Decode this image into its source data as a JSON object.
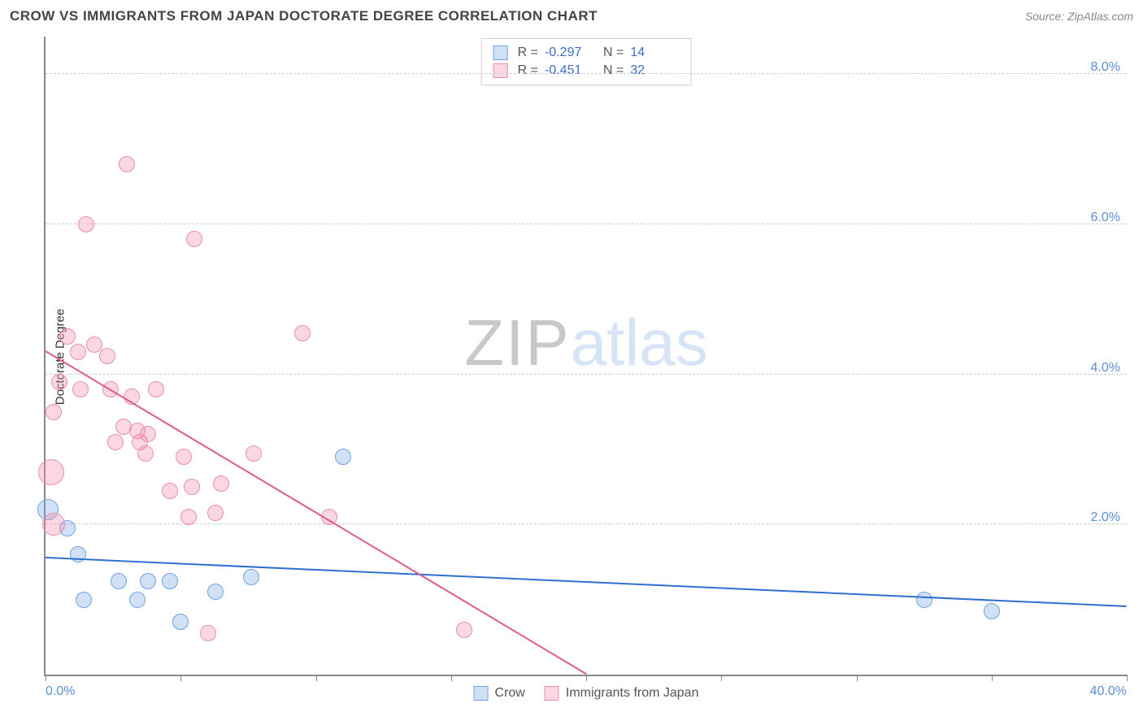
{
  "header": {
    "title": "CROW VS IMMIGRANTS FROM JAPAN DOCTORATE DEGREE CORRELATION CHART",
    "source_prefix": "Source: ",
    "source": "ZipAtlas.com"
  },
  "watermark": {
    "zip": "ZIP",
    "atlas": "atlas"
  },
  "chart": {
    "type": "scatter",
    "y_axis_label": "Doctorate Degree",
    "background_color": "#ffffff",
    "grid_color": "#cccccc",
    "axis_color": "#888888",
    "tick_label_color": "#5b8fd6",
    "xlim": [
      0,
      40
    ],
    "ylim": [
      0,
      8.5
    ],
    "x_ticks": [
      0,
      5,
      10,
      15,
      20,
      25,
      30,
      35,
      40
    ],
    "x_tick_labels": {
      "0": "0.0%",
      "40": "40.0%"
    },
    "y_gridlines": [
      2,
      4,
      6,
      8
    ],
    "y_tick_labels": {
      "2": "2.0%",
      "4": "4.0%",
      "6": "6.0%",
      "8": "8.0%"
    },
    "series": [
      {
        "id": "crow",
        "label": "Crow",
        "fill_color": "rgba(120,170,230,0.35)",
        "stroke_color": "#6fa3e0",
        "marker_radius": 10,
        "R": "-0.297",
        "N": "14",
        "trend": {
          "x1": 0,
          "y1": 1.55,
          "x2": 40,
          "y2": 0.9,
          "color": "#2f6fd0",
          "width": 2
        },
        "points": [
          {
            "x": 0.1,
            "y": 2.2,
            "r": 13
          },
          {
            "x": 0.8,
            "y": 1.95
          },
          {
            "x": 1.2,
            "y": 1.6
          },
          {
            "x": 1.4,
            "y": 1.0
          },
          {
            "x": 2.7,
            "y": 1.25
          },
          {
            "x": 3.4,
            "y": 1.0
          },
          {
            "x": 3.8,
            "y": 1.25
          },
          {
            "x": 4.6,
            "y": 1.25
          },
          {
            "x": 5.0,
            "y": 0.7
          },
          {
            "x": 6.3,
            "y": 1.1
          },
          {
            "x": 7.6,
            "y": 1.3
          },
          {
            "x": 11.0,
            "y": 2.9
          },
          {
            "x": 32.5,
            "y": 1.0
          },
          {
            "x": 35.0,
            "y": 0.85
          }
        ]
      },
      {
        "id": "japan",
        "label": "Immigrants from Japan",
        "fill_color": "rgba(240,140,170,0.35)",
        "stroke_color": "#e88fb0",
        "marker_radius": 10,
        "R": "-0.451",
        "N": "32",
        "trend": {
          "x1": 0,
          "y1": 4.3,
          "x2": 20,
          "y2": 0.0,
          "color": "#e05a8a",
          "width": 2
        },
        "points": [
          {
            "x": 0.2,
            "y": 2.7,
            "r": 16
          },
          {
            "x": 0.3,
            "y": 2.0,
            "r": 14
          },
          {
            "x": 0.3,
            "y": 3.5
          },
          {
            "x": 0.5,
            "y": 3.9
          },
          {
            "x": 0.8,
            "y": 4.5
          },
          {
            "x": 1.2,
            "y": 4.3
          },
          {
            "x": 1.3,
            "y": 3.8
          },
          {
            "x": 1.5,
            "y": 6.0
          },
          {
            "x": 1.8,
            "y": 4.4
          },
          {
            "x": 2.3,
            "y": 4.25
          },
          {
            "x": 2.4,
            "y": 3.8
          },
          {
            "x": 2.6,
            "y": 3.1
          },
          {
            "x": 2.9,
            "y": 3.3
          },
          {
            "x": 3.0,
            "y": 6.8
          },
          {
            "x": 3.2,
            "y": 3.7
          },
          {
            "x": 3.4,
            "y": 3.25
          },
          {
            "x": 3.5,
            "y": 3.1
          },
          {
            "x": 3.7,
            "y": 2.95
          },
          {
            "x": 3.8,
            "y": 3.2
          },
          {
            "x": 4.1,
            "y": 3.8
          },
          {
            "x": 4.6,
            "y": 2.45
          },
          {
            "x": 5.1,
            "y": 2.9
          },
          {
            "x": 5.3,
            "y": 2.1
          },
          {
            "x": 5.5,
            "y": 5.8
          },
          {
            "x": 6.0,
            "y": 0.55
          },
          {
            "x": 6.3,
            "y": 2.15
          },
          {
            "x": 6.5,
            "y": 2.55
          },
          {
            "x": 7.7,
            "y": 2.95
          },
          {
            "x": 9.5,
            "y": 4.55
          },
          {
            "x": 10.5,
            "y": 2.1
          },
          {
            "x": 15.5,
            "y": 0.6
          },
          {
            "x": 5.4,
            "y": 2.5
          }
        ]
      }
    ]
  },
  "stats_box": {
    "R_label": "R =",
    "N_label": "N ="
  },
  "legend": {
    "crow": "Crow",
    "japan": "Immigrants from Japan"
  }
}
